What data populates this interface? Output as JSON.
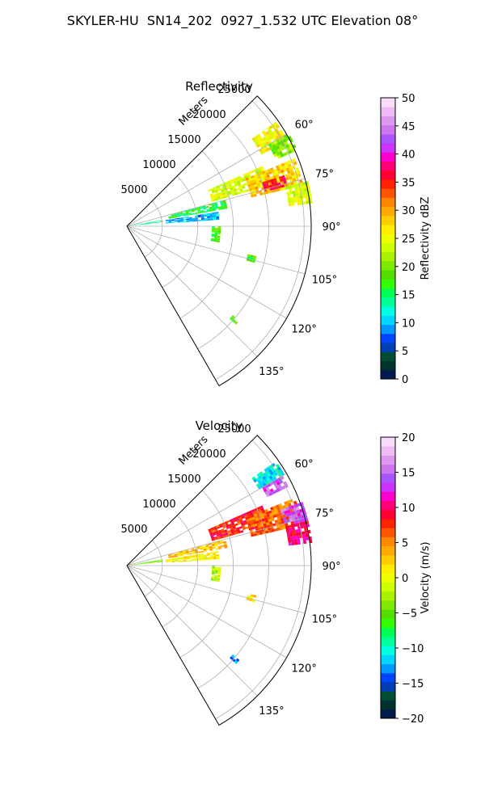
{
  "title": "SKYLER-HU  SN14_202  0927_1.532 UTC Elevation 08°",
  "chart_data": [
    {
      "type": "heatmap",
      "title": "Reflectivity",
      "radial_label": "Meters",
      "radial_ticks": [
        "5000",
        "10000",
        "15000",
        "20000",
        "25000"
      ],
      "radial_tick_values": [
        5000,
        10000,
        15000,
        20000,
        25000
      ],
      "azimuth_ticks": [
        "60°",
        "75°",
        "90°",
        "105°",
        "120°",
        "135°"
      ],
      "azimuth_tick_values": [
        60,
        75,
        90,
        105,
        120,
        135
      ],
      "azimuth_range": [
        45,
        150
      ],
      "range_max_m": 26000,
      "grid": true,
      "colorbar": {
        "label": "Reflectivity dBZ",
        "min": 0,
        "max": 50,
        "ticks": [
          "0",
          "5",
          "10",
          "15",
          "20",
          "25",
          "30",
          "35",
          "40",
          "45",
          "50"
        ],
        "tick_values": [
          0,
          5,
          10,
          15,
          20,
          25,
          30,
          35,
          40,
          45,
          50
        ],
        "colors": [
          "#001a4d",
          "#00332e",
          "#004d33",
          "#003fb3",
          "#0044ff",
          "#0099ff",
          "#00d5ff",
          "#00ffe0",
          "#00ff99",
          "#00ff55",
          "#33ff00",
          "#55dd00",
          "#7dea00",
          "#aaf200",
          "#ccff00",
          "#eeff00",
          "#ffee00",
          "#ffcc00",
          "#ffaa00",
          "#ff8800",
          "#ff5500",
          "#ff2200",
          "#ff0033",
          "#ff0077",
          "#ff00cc",
          "#cc33ff",
          "#aa55ff",
          "#cc77ee",
          "#dd99ee",
          "#eebbf5",
          "#f7ddfa"
        ]
      },
      "echoes": [
        {
          "az_from": 55,
          "az_to": 62,
          "r_from": 21500,
          "r_to": 25500,
          "value": 26
        },
        {
          "az_from": 60,
          "az_to": 66,
          "r_from": 23000,
          "r_to": 26000,
          "value": 20
        },
        {
          "az_from": 66,
          "az_to": 74,
          "r_from": 12500,
          "r_to": 20500,
          "value": 24
        },
        {
          "az_from": 68,
          "az_to": 77,
          "r_from": 18000,
          "r_to": 25500,
          "value": 28
        },
        {
          "az_from": 72,
          "az_to": 76,
          "r_from": 20000,
          "r_to": 23000,
          "value": 36
        },
        {
          "az_from": 75,
          "az_to": 80,
          "r_from": 6000,
          "r_to": 14000,
          "value": 16
        },
        {
          "az_from": 76,
          "az_to": 83,
          "r_from": 23000,
          "r_to": 26000,
          "value": 24
        },
        {
          "az_from": 80,
          "az_to": 84,
          "r_from": 500,
          "r_to": 5000,
          "value": 14
        },
        {
          "az_from": 81,
          "az_to": 86,
          "r_from": 5500,
          "r_to": 13000,
          "value": 10
        },
        {
          "az_from": 90,
          "az_to": 100,
          "r_from": 12000,
          "r_to": 13000,
          "value": 18
        },
        {
          "az_from": 103,
          "az_to": 106,
          "r_from": 17500,
          "r_to": 18500,
          "value": 18
        },
        {
          "az_from": 130,
          "az_to": 132,
          "r_from": 19500,
          "r_to": 20500,
          "value": 20
        }
      ]
    },
    {
      "type": "heatmap",
      "title": "Velocity",
      "radial_label": "Meters",
      "radial_ticks": [
        "5000",
        "10000",
        "15000",
        "20000",
        "25000"
      ],
      "radial_tick_values": [
        5000,
        10000,
        15000,
        20000,
        25000
      ],
      "azimuth_ticks": [
        "60°",
        "75°",
        "90°",
        "105°",
        "120°",
        "135°"
      ],
      "azimuth_tick_values": [
        60,
        75,
        90,
        105,
        120,
        135
      ],
      "azimuth_range": [
        45,
        150
      ],
      "range_max_m": 26000,
      "grid": true,
      "colorbar": {
        "label": "Velocity (m/s)",
        "min": -20,
        "max": 20,
        "ticks": [
          "−20",
          "−15",
          "−10",
          "−5",
          "0",
          "5",
          "10",
          "15",
          "20"
        ],
        "tick_values": [
          -20,
          -15,
          -10,
          -5,
          0,
          5,
          10,
          15,
          20
        ],
        "colors": [
          "#001a4d",
          "#00332e",
          "#004d33",
          "#003fb3",
          "#0044ff",
          "#0099ff",
          "#00d5ff",
          "#00ffe0",
          "#00ff99",
          "#00ff55",
          "#33ff00",
          "#55dd00",
          "#7dea00",
          "#aaf200",
          "#ccff00",
          "#eeff00",
          "#ffee00",
          "#ffcc00",
          "#ffaa00",
          "#ff8800",
          "#ff5500",
          "#ff2200",
          "#ff0033",
          "#ff0077",
          "#ff00cc",
          "#cc33ff",
          "#aa55ff",
          "#cc77ee",
          "#dd99ee",
          "#eebbf5",
          "#f7ddfa"
        ]
      },
      "echoes": [
        {
          "az_from": 55,
          "az_to": 60,
          "r_from": 21500,
          "r_to": 25500,
          "value": -11
        },
        {
          "az_from": 60,
          "az_to": 64,
          "r_from": 22000,
          "r_to": 25000,
          "value": 14
        },
        {
          "az_from": 66,
          "az_to": 74,
          "r_from": 12500,
          "r_to": 20500,
          "value": 8
        },
        {
          "az_from": 68,
          "az_to": 77,
          "r_from": 18000,
          "r_to": 25500,
          "value": 6
        },
        {
          "az_from": 70,
          "az_to": 76,
          "r_from": 23000,
          "r_to": 26000,
          "value": 14
        },
        {
          "az_from": 75,
          "az_to": 80,
          "r_from": 6000,
          "r_to": 14000,
          "value": 3
        },
        {
          "az_from": 76,
          "az_to": 83,
          "r_from": 23000,
          "r_to": 26000,
          "value": 10
        },
        {
          "az_from": 80,
          "az_to": 84,
          "r_from": 500,
          "r_to": 5000,
          "value": -4
        },
        {
          "az_from": 81,
          "az_to": 86,
          "r_from": 5500,
          "r_to": 13000,
          "value": 1
        },
        {
          "az_from": 90,
          "az_to": 100,
          "r_from": 12000,
          "r_to": 13000,
          "value": -2
        },
        {
          "az_from": 103,
          "az_to": 106,
          "r_from": 17500,
          "r_to": 18500,
          "value": 2
        },
        {
          "az_from": 130,
          "az_to": 132,
          "r_from": 19500,
          "r_to": 20500,
          "value": -12
        }
      ]
    }
  ]
}
